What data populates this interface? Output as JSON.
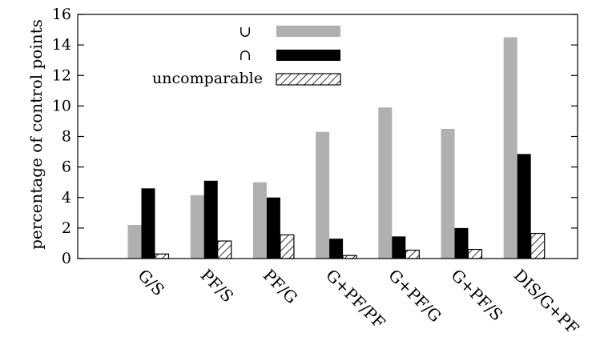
{
  "chart_data": {
    "type": "bar",
    "title": "",
    "xlabel": "",
    "ylabel": "percentage of control points",
    "ylim": [
      0,
      16
    ],
    "yticks": [
      0,
      2,
      4,
      6,
      8,
      10,
      12,
      14,
      16
    ],
    "grid": false,
    "legend_position": "top-right",
    "categories": [
      "G/S",
      "PF/S",
      "PF/G",
      "G+PF/PF",
      "G+PF/G",
      "G+PF/S",
      "DIS/G+PF"
    ],
    "series": [
      {
        "name": "⊂",
        "legend_label": "⊂",
        "color": "#b0b0b0",
        "pattern": "solid",
        "values": [
          2.2,
          4.15,
          5.0,
          8.3,
          9.9,
          8.5,
          14.5
        ]
      },
      {
        "name": "⊃",
        "legend_label": "⊃",
        "color": "#000000",
        "pattern": "solid",
        "values": [
          4.6,
          5.1,
          4.0,
          1.3,
          1.45,
          2.0,
          6.85
        ]
      },
      {
        "name": "uncomparable",
        "legend_label": "uncomparable",
        "color": "#000000",
        "pattern": "hatch",
        "values": [
          0.3,
          1.15,
          1.55,
          0.2,
          0.55,
          0.6,
          1.65
        ]
      }
    ]
  }
}
